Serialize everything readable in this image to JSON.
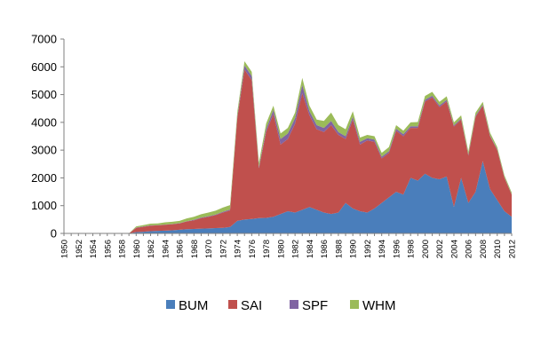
{
  "chart_data": {
    "type": "area",
    "stacked": true,
    "x": [
      1950,
      1951,
      1952,
      1953,
      1954,
      1955,
      1956,
      1957,
      1958,
      1959,
      1960,
      1961,
      1962,
      1963,
      1964,
      1965,
      1966,
      1967,
      1968,
      1969,
      1970,
      1971,
      1972,
      1973,
      1974,
      1975,
      1976,
      1977,
      1978,
      1979,
      1980,
      1981,
      1982,
      1983,
      1984,
      1985,
      1986,
      1987,
      1988,
      1989,
      1990,
      1991,
      1992,
      1993,
      1994,
      1995,
      1996,
      1997,
      1998,
      1999,
      2000,
      2001,
      2002,
      2003,
      2004,
      2005,
      2006,
      2007,
      2008,
      2009,
      2010,
      2011,
      2012
    ],
    "x_tick_labels": [
      "1950",
      "1952",
      "1954",
      "1956",
      "1958",
      "1960",
      "1962",
      "1964",
      "1966",
      "1968",
      "1970",
      "1972",
      "1974",
      "1976",
      "1978",
      "1980",
      "1982",
      "1984",
      "1986",
      "1988",
      "1990",
      "1992",
      "1994",
      "1996",
      "1998",
      "2000",
      "2002",
      "2004",
      "2006",
      "2008",
      "2010",
      "2012"
    ],
    "ylim": [
      0,
      7000
    ],
    "y_ticks": [
      0,
      1000,
      2000,
      3000,
      4000,
      5000,
      6000,
      7000
    ],
    "y_tick_labels": [
      "0",
      "1000",
      "2000",
      "3000",
      "4000",
      "5000",
      "6000",
      "7000"
    ],
    "legend": "bottom",
    "grid": false,
    "title": "",
    "xlabel": "",
    "ylabel": "",
    "series": [
      {
        "name": "BUM",
        "color": "#4A7EBB",
        "values": [
          0,
          0,
          0,
          0,
          0,
          0,
          0,
          0,
          0,
          0,
          50,
          60,
          80,
          90,
          100,
          110,
          130,
          150,
          160,
          170,
          180,
          190,
          200,
          230,
          450,
          500,
          520,
          550,
          560,
          600,
          700,
          800,
          750,
          850,
          950,
          850,
          750,
          700,
          750,
          1100,
          900,
          800,
          750,
          900,
          1100,
          1300,
          1500,
          1400,
          2000,
          1900,
          2150,
          2000,
          1950,
          2050,
          950,
          2000,
          1100,
          1500,
          2600,
          1600,
          1200,
          800,
          600
        ]
      },
      {
        "name": "SAI",
        "color": "#C0504D",
        "values": [
          0,
          0,
          0,
          0,
          0,
          0,
          0,
          0,
          0,
          0,
          150,
          180,
          200,
          200,
          210,
          220,
          230,
          280,
          310,
          380,
          420,
          470,
          550,
          600,
          3700,
          5400,
          5000,
          1800,
          3100,
          3700,
          2500,
          2600,
          3200,
          4200,
          3300,
          2900,
          2900,
          3200,
          2800,
          2300,
          3200,
          2400,
          2600,
          2400,
          1600,
          1600,
          2200,
          2100,
          1800,
          1900,
          2600,
          2900,
          2600,
          2700,
          2900,
          2100,
          1700,
          2700,
          2000,
          1900,
          1800,
          1200,
          800
        ]
      },
      {
        "name": "SPF",
        "color": "#8064A2",
        "values": [
          0,
          0,
          0,
          0,
          0,
          0,
          0,
          0,
          0,
          0,
          10,
          10,
          10,
          10,
          10,
          10,
          10,
          10,
          20,
          20,
          20,
          20,
          30,
          30,
          60,
          150,
          150,
          50,
          100,
          150,
          200,
          200,
          200,
          300,
          150,
          150,
          150,
          150,
          100,
          100,
          100,
          100,
          80,
          80,
          60,
          60,
          70,
          70,
          60,
          60,
          60,
          60,
          60,
          60,
          40,
          40,
          40,
          40,
          40,
          30,
          30,
          20,
          10
        ]
      },
      {
        "name": "WHM",
        "color": "#9BBB59",
        "values": [
          0,
          0,
          0,
          0,
          0,
          0,
          0,
          0,
          0,
          0,
          40,
          50,
          60,
          60,
          80,
          80,
          80,
          100,
          110,
          120,
          130,
          140,
          150,
          160,
          150,
          150,
          150,
          150,
          200,
          150,
          200,
          200,
          200,
          250,
          200,
          200,
          250,
          300,
          250,
          250,
          200,
          150,
          120,
          120,
          140,
          150,
          130,
          130,
          140,
          150,
          140,
          140,
          130,
          130,
          110,
          110,
          110,
          110,
          100,
          100,
          80,
          70,
          60
        ]
      }
    ]
  }
}
